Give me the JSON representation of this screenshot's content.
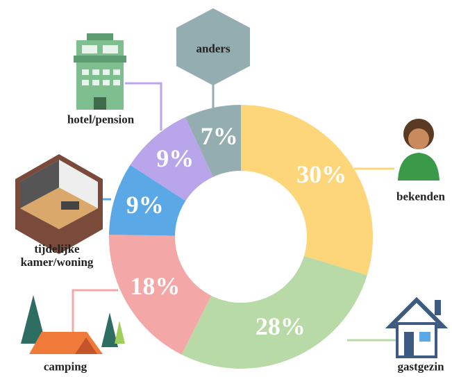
{
  "chart_data": {
    "type": "donut",
    "categories": [
      "bekenden",
      "gastgezin",
      "camping",
      "tijdelijke kamer/woning",
      "hotel/pension",
      "anders"
    ],
    "values": [
      30,
      28,
      18,
      9,
      9,
      7
    ],
    "value_labels": [
      "30%",
      "28%",
      "18%",
      "9%",
      "9%",
      "7%"
    ],
    "colors": [
      "#fdd67a",
      "#b8daa6",
      "#f4a7a7",
      "#5aa8e6",
      "#b9a5ea",
      "#93adb1"
    ]
  }
}
